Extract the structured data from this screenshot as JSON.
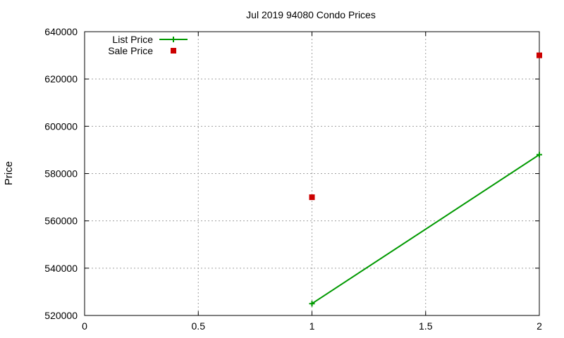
{
  "chart_data": {
    "type": "line",
    "title": "Jul 2019 94080 Condo Prices",
    "xlabel": "",
    "ylabel": "Price",
    "xlim": [
      0,
      2
    ],
    "ylim": [
      520000,
      640000
    ],
    "x_ticks": [
      0,
      0.5,
      1,
      1.5,
      2
    ],
    "x_tick_labels": [
      "0",
      "0.5",
      "1",
      "1.5",
      "2"
    ],
    "y_ticks": [
      520000,
      540000,
      560000,
      580000,
      600000,
      620000,
      640000
    ],
    "y_tick_labels": [
      "520000",
      "540000",
      "560000",
      "580000",
      "600000",
      "620000",
      "640000"
    ],
    "grid": true,
    "legend_position": "top-left",
    "series": [
      {
        "name": "List Price",
        "style": "line-with-plus-markers",
        "color": "#009900",
        "points": [
          {
            "x": 1,
            "y": 525000
          },
          {
            "x": 2,
            "y": 588000
          }
        ]
      },
      {
        "name": "Sale Price",
        "style": "square-markers",
        "color": "#cc0000",
        "points": [
          {
            "x": 1,
            "y": 570000
          },
          {
            "x": 2,
            "y": 630000
          }
        ]
      }
    ]
  }
}
